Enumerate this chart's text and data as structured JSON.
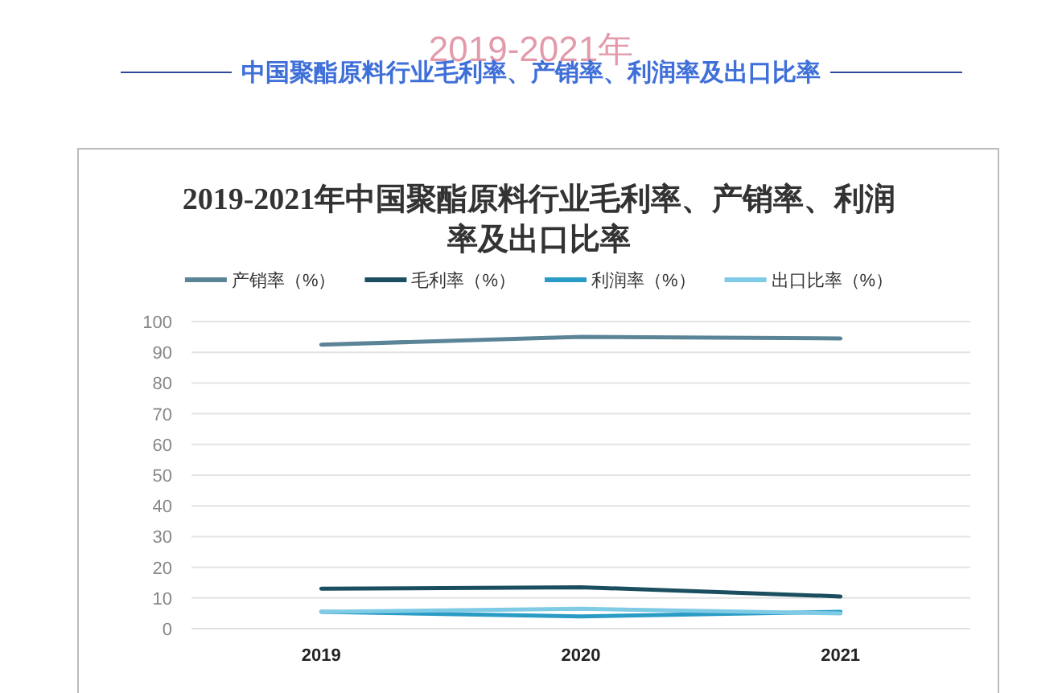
{
  "chart_data": {
    "type": "line",
    "title": "2019-2021年中国聚酯原料行业毛利率、产销率、利润率及出口比率",
    "annotations": [
      "2019-2021年",
      "中国聚酯原料行业毛利率、产销率、利润率及出口比率"
    ],
    "categories": [
      "2019",
      "2020",
      "2021"
    ],
    "series": [
      {
        "name": "产销率（%）",
        "color": "#5b8497",
        "values": [
          92.5,
          95,
          94.5
        ]
      },
      {
        "name": "毛利率（%）",
        "color": "#1b4f5f",
        "values": [
          13,
          13.5,
          10.5
        ]
      },
      {
        "name": "利润率（%）",
        "color": "#2a9bc4",
        "values": [
          5.5,
          4,
          5.5
        ]
      },
      {
        "name": "出口比率（%）",
        "color": "#7fcbe6",
        "values": [
          5.5,
          6.5,
          5
        ]
      }
    ],
    "ylim": [
      0,
      100
    ],
    "yticks": [
      0,
      10,
      20,
      30,
      40,
      50,
      60,
      70,
      80,
      90,
      100
    ],
    "grid": "y",
    "legend": "top",
    "marker": "none",
    "line_style": "solid"
  }
}
